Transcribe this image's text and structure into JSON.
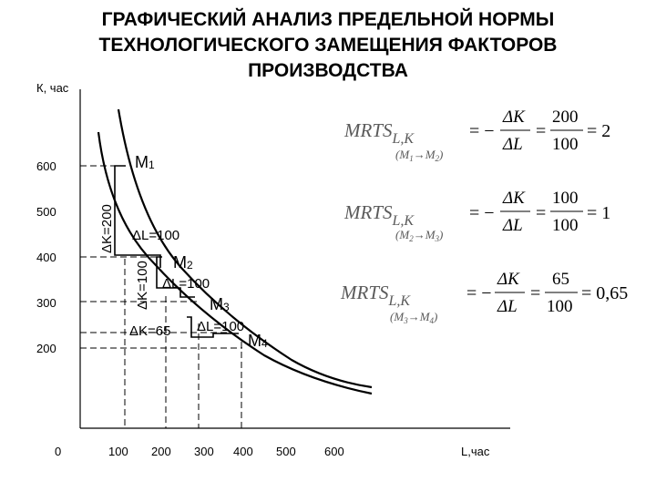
{
  "title_lines": [
    "ГРАФИЧЕСКИЙ АНАЛИЗ ПРЕДЕЛЬНОЙ НОРМЫ",
    "ТЕХНОЛОГИЧЕСКОГО ЗАМЕЩЕНИЯ ФАКТОРОВ",
    "ПРОИЗВОДСТВА"
  ],
  "axes": {
    "y_label": "К, час",
    "x_label": "L,час",
    "origin": "0",
    "y_ticks": [
      "600",
      "500",
      "400",
      "300",
      "200"
    ],
    "x_ticks": [
      "100",
      "200",
      "300",
      "400",
      "500",
      "600"
    ]
  },
  "points": [
    {
      "name": "М",
      "sub": "1"
    },
    {
      "name": "М",
      "sub": "2"
    },
    {
      "name": "М",
      "sub": "3"
    },
    {
      "name": "М",
      "sub": "4"
    }
  ],
  "deltas": {
    "dk1": "ΔK=200",
    "dl1": "ΔL=100",
    "dk2": "ΔK=100",
    "dl2": "ΔL=100",
    "dk3": "ΔK=65",
    "dl3": "ΔL=100"
  },
  "formulas": [
    {
      "mrts": "MRTS",
      "sub": "L,K",
      "from": "M",
      "from_sub": "1",
      "arrow": "→",
      "to": "M",
      "to_sub": "2",
      "neg": "= −",
      "dnum": "ΔK",
      "dden": "ΔL",
      "num": "200",
      "den": "100",
      "result": "= 2"
    },
    {
      "mrts": "MRTS",
      "sub": "L,K",
      "from": "M",
      "from_sub": "2",
      "arrow": "→",
      "to": "M",
      "to_sub": "3",
      "neg": "= −",
      "dnum": "ΔK",
      "dden": "ΔL",
      "num": "100",
      "den": "100",
      "result": "= 1"
    },
    {
      "mrts": "MRTS",
      "sub": "L,K",
      "from": "M",
      "from_sub": "3",
      "arrow": "→",
      "to": "M",
      "to_sub": "4",
      "neg": "= −",
      "dnum": "ΔK",
      "dden": "ΔL",
      "num": "65",
      "den": "100",
      "result": "= 0,65"
    }
  ]
}
